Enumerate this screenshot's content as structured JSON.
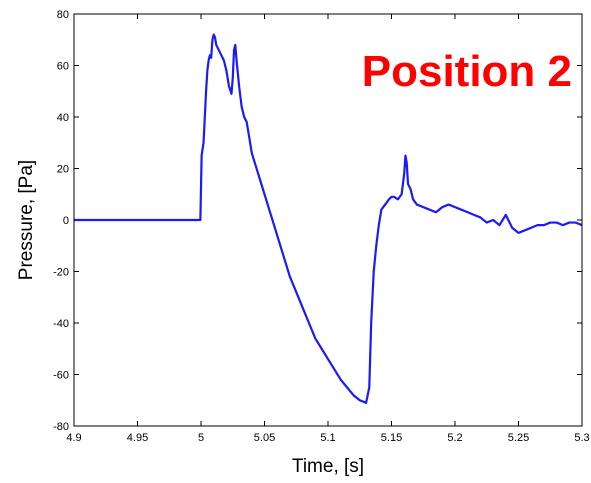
{
  "chart_data": {
    "type": "line",
    "title": "",
    "xlabel": "Time, [s]",
    "ylabel": "Pressure, [Pa]",
    "xlim": [
      4.9,
      5.3
    ],
    "ylim": [
      -80,
      80
    ],
    "xticks": [
      4.9,
      4.95,
      5.0,
      5.05,
      5.1,
      5.15,
      5.2,
      5.25,
      5.3
    ],
    "xtick_labels": [
      "4.9",
      "4.95",
      "5",
      "5.05",
      "5.1",
      "5.15",
      "5.2",
      "5.25",
      "5.3"
    ],
    "yticks": [
      -80,
      -60,
      -40,
      -20,
      0,
      20,
      40,
      60,
      80
    ],
    "ytick_labels": [
      "-80",
      "-60",
      "-40",
      "-20",
      "0",
      "20",
      "40",
      "60",
      "80"
    ],
    "grid": false,
    "line_color": "#1a1aff",
    "annotation": {
      "text": "Position 2",
      "color": "#ff0000",
      "placement": "top-right"
    },
    "series": [
      {
        "x": [
          4.9,
          4.95,
          4.99,
          4.9995,
          5.0005,
          5.002,
          5.004,
          5.005,
          5.006,
          5.007,
          5.008,
          5.009,
          5.01,
          5.011,
          5.012,
          5.014,
          5.016,
          5.018,
          5.02,
          5.022,
          5.024,
          5.025,
          5.026,
          5.027,
          5.028,
          5.03,
          5.032,
          5.034,
          5.036,
          5.038,
          5.04,
          5.045,
          5.05,
          5.055,
          5.06,
          5.065,
          5.07,
          5.075,
          5.08,
          5.085,
          5.09,
          5.095,
          5.1,
          5.105,
          5.11,
          5.115,
          5.12,
          5.125,
          5.13,
          5.1325,
          5.134,
          5.136,
          5.138,
          5.14,
          5.142,
          5.145,
          5.148,
          5.15,
          5.152,
          5.155,
          5.158,
          5.16,
          5.161,
          5.162,
          5.163,
          5.165,
          5.167,
          5.17,
          5.175,
          5.18,
          5.185,
          5.19,
          5.195,
          5.2,
          5.205,
          5.21,
          5.215,
          5.22,
          5.225,
          5.23,
          5.235,
          5.24,
          5.245,
          5.25,
          5.255,
          5.26,
          5.265,
          5.27,
          5.275,
          5.28,
          5.285,
          5.29,
          5.295,
          5.3
        ],
        "y": [
          0,
          0,
          0,
          0,
          25,
          30,
          50,
          58,
          62,
          64,
          63,
          70,
          72,
          71,
          68,
          66,
          64,
          62,
          58,
          52,
          49,
          55,
          66,
          68,
          62,
          52,
          44,
          40,
          38,
          32,
          26,
          18,
          10,
          2,
          -6,
          -14,
          -22,
          -28,
          -34,
          -40,
          -46,
          -50,
          -54,
          -58,
          -62,
          -65,
          -68,
          -70,
          -71,
          -65,
          -40,
          -20,
          -10,
          -2,
          4,
          6,
          8,
          9,
          9,
          8,
          10,
          18,
          25,
          22,
          14,
          12,
          8,
          6,
          5,
          4,
          3,
          5,
          6,
          5,
          4,
          3,
          2,
          1,
          -1,
          0,
          -2,
          2,
          -3,
          -5,
          -4,
          -3,
          -2,
          -2,
          -1,
          -1,
          -2,
          -1,
          -1,
          -2
        ]
      }
    ]
  }
}
